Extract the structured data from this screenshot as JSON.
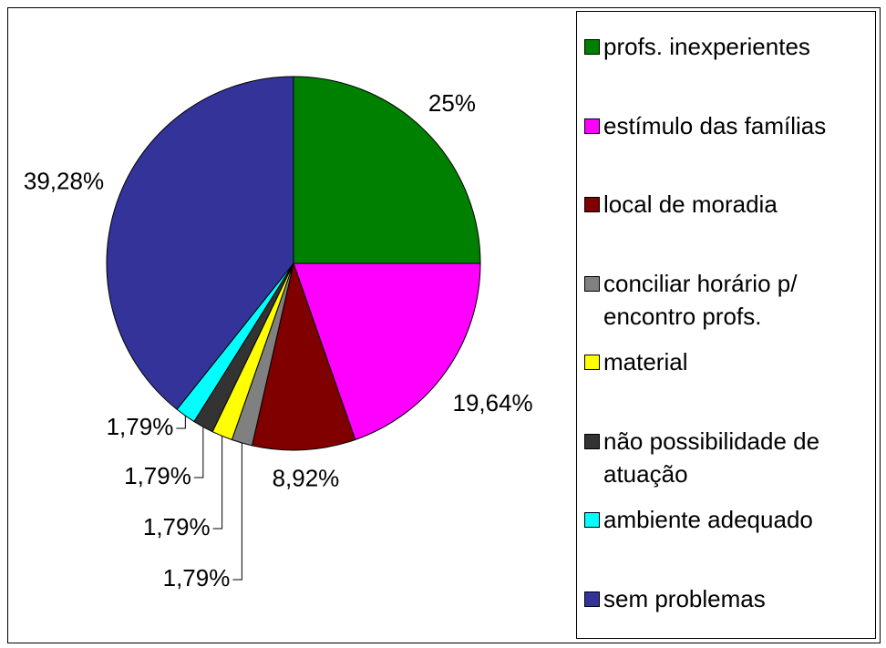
{
  "chart_data": {
    "type": "pie",
    "categories": [
      "profs. inexperientes",
      "estímulo das famílias",
      "local de moradia",
      "conciliar horário p/ encontro profs.",
      "material",
      "não possibilidade de atuação",
      "ambiente adequado",
      "sem problemas"
    ],
    "values": [
      25,
      19.64,
      8.92,
      1.79,
      1.79,
      1.79,
      1.79,
      39.28
    ],
    "value_labels": [
      "25%",
      "19,64%",
      "8,92%",
      "1,79%",
      "1,79%",
      "1,79%",
      "1,79%",
      "39,28%"
    ],
    "colors": [
      "#008000",
      "#ff00ff",
      "#800000",
      "#808080",
      "#ffff00",
      "#333333",
      "#00ffff",
      "#333399"
    ],
    "legend": "right"
  }
}
